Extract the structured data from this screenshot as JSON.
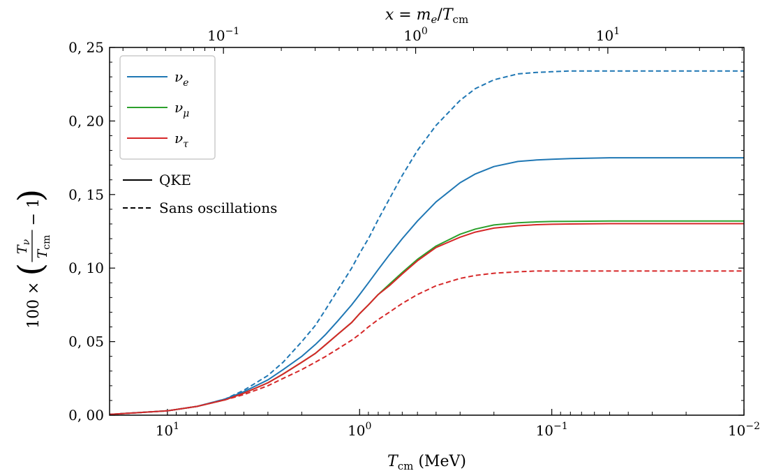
{
  "chart_data": {
    "type": "line",
    "xlabel": "T_cm (MeV)",
    "top_xlabel": "x = m_e / T_cm",
    "ylabel": "100 × (T_ν / T_cm − 1)",
    "x_scale": "log",
    "x_reversed": true,
    "xlim": [
      20,
      0.01
    ],
    "ylim": [
      0,
      0.25
    ],
    "y_ticks": [
      0,
      0.05,
      0.1,
      0.15,
      0.2,
      0.25
    ],
    "y_tick_labels": [
      "0, 00",
      "0, 05",
      "0, 10",
      "0, 15",
      "0, 20",
      "0, 25"
    ],
    "x_ticks": [
      10,
      1,
      0.1,
      0.01
    ],
    "x_tick_labels": [
      {
        "base": "10",
        "exp": "1"
      },
      {
        "base": "10",
        "exp": "0"
      },
      {
        "base": "10",
        "exp": "−1"
      },
      {
        "base": "10",
        "exp": "−2"
      }
    ],
    "top_x_ticks": [
      0.1,
      1,
      10
    ],
    "top_x_tick_labels": [
      {
        "base": "10",
        "exp": "−1"
      },
      {
        "base": "10",
        "exp": "0"
      },
      {
        "base": "10",
        "exp": "1"
      }
    ],
    "legend_position": "upper-left",
    "legend_flavours": [
      {
        "label": "ν_e",
        "base": "ν",
        "sub": "e",
        "color": "#1f77b4"
      },
      {
        "label": "ν_μ",
        "base": "ν",
        "sub": "μ",
        "color": "#2ca02c"
      },
      {
        "label": "ν_τ",
        "base": "ν",
        "sub": "τ",
        "color": "#d62728"
      }
    ],
    "legend_styles": [
      {
        "label": "QKE",
        "dash": "solid"
      },
      {
        "label": "Sans oscillations",
        "dash": "dashed"
      }
    ],
    "x": [
      20,
      15,
      10,
      7,
      5,
      4,
      3,
      2.5,
      2,
      1.7,
      1.5,
      1.3,
      1.1,
      1,
      0.9,
      0.8,
      0.7,
      0.6,
      0.5,
      0.4,
      0.3,
      0.25,
      0.2,
      0.15,
      0.12,
      0.1,
      0.08,
      0.05,
      0.03,
      0.02,
      0.01
    ],
    "series": [
      {
        "color": "#1f77b4",
        "dash": "solid",
        "values": [
          0.0005,
          0.0015,
          0.003,
          0.006,
          0.011,
          0.016,
          0.024,
          0.031,
          0.04,
          0.048,
          0.055,
          0.064,
          0.075,
          0.082,
          0.09,
          0.099,
          0.109,
          0.12,
          0.132,
          0.145,
          0.158,
          0.164,
          0.169,
          0.1725,
          0.1735,
          0.174,
          0.1745,
          0.175,
          0.175,
          0.175,
          0.175
        ]
      },
      {
        "color": "#2ca02c",
        "dash": "solid",
        "values": [
          0.0005,
          0.0015,
          0.003,
          0.006,
          0.0105,
          0.015,
          0.022,
          0.028,
          0.036,
          0.042,
          0.048,
          0.055,
          0.063,
          0.069,
          0.075,
          0.082,
          0.089,
          0.097,
          0.106,
          0.115,
          0.123,
          0.1265,
          0.1293,
          0.1308,
          0.1314,
          0.1317,
          0.1318,
          0.132,
          0.132,
          0.132,
          0.132
        ]
      },
      {
        "color": "#d62728",
        "dash": "solid",
        "values": [
          0.0005,
          0.0015,
          0.003,
          0.006,
          0.0105,
          0.015,
          0.022,
          0.028,
          0.036,
          0.042,
          0.048,
          0.055,
          0.063,
          0.069,
          0.075,
          0.082,
          0.088,
          0.096,
          0.105,
          0.114,
          0.121,
          0.1245,
          0.1272,
          0.1288,
          0.1295,
          0.1298,
          0.13,
          0.1302,
          0.1302,
          0.1302,
          0.1302
        ]
      },
      {
        "color": "#1f77b4",
        "dash": "dashed",
        "values": [
          0.0005,
          0.0015,
          0.003,
          0.006,
          0.011,
          0.017,
          0.027,
          0.036,
          0.05,
          0.061,
          0.072,
          0.085,
          0.1,
          0.11,
          0.12,
          0.133,
          0.147,
          0.163,
          0.18,
          0.197,
          0.214,
          0.222,
          0.228,
          0.232,
          0.233,
          0.2335,
          0.234,
          0.234,
          0.234,
          0.234,
          0.234
        ]
      },
      {
        "color": "#d62728",
        "dash": "dashed",
        "values": [
          0.0005,
          0.0015,
          0.003,
          0.006,
          0.0105,
          0.014,
          0.02,
          0.025,
          0.031,
          0.036,
          0.04,
          0.045,
          0.051,
          0.055,
          0.06,
          0.065,
          0.07,
          0.076,
          0.082,
          0.088,
          0.093,
          0.095,
          0.0965,
          0.0975,
          0.098,
          0.098,
          0.098,
          0.098,
          0.098,
          0.098,
          0.098
        ]
      }
    ]
  }
}
